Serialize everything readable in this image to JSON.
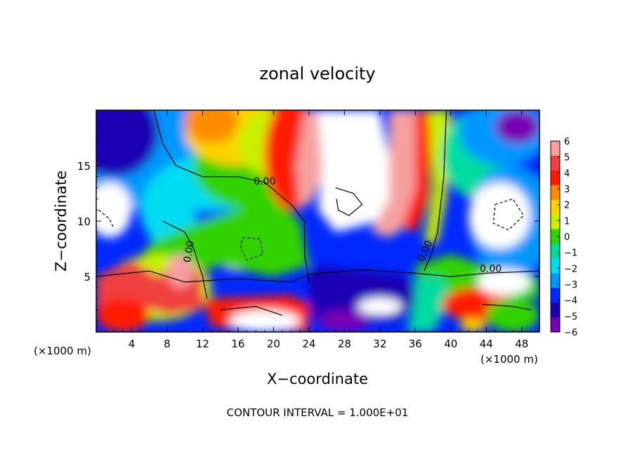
{
  "chart_data": {
    "type": "heatmap",
    "title": "zonal velocity",
    "xlabel": "X−coordinate",
    "ylabel": "Z−coordinate",
    "x_unit_left": "(×1000 m)",
    "x_unit_right": "(×1000 m)",
    "xlim": [
      0,
      50
    ],
    "ylim": [
      0,
      20
    ],
    "x_ticks": [
      4,
      8,
      12,
      16,
      20,
      24,
      28,
      32,
      36,
      40,
      44,
      48
    ],
    "y_ticks": [
      5,
      10,
      15
    ],
    "colorbar": {
      "levels": [
        6,
        5,
        4,
        3,
        2,
        1,
        0,
        -1,
        -2,
        -3,
        -4,
        -5,
        -6
      ],
      "labels": [
        "6",
        "5",
        "4",
        "3",
        "2",
        "1",
        "0",
        "−1",
        "−2",
        "−3",
        "−4",
        "−5",
        "−6"
      ],
      "colors": [
        "#f5a0a0",
        "#f04040",
        "#ff1a00",
        "#ff8c00",
        "#ffd200",
        "#c8f000",
        "#32d200",
        "#00dca0",
        "#00dcf0",
        "#0096ff",
        "#0028ff",
        "#1e00b4",
        "#7800b4"
      ]
    },
    "out_of_range_color": "#ffffff",
    "zero_contour_label": "0.00",
    "contour_labels": [
      "0.00",
      "0.00",
      "0.00",
      "0.00"
    ],
    "footer": "CONTOUR INTERVAL = 1.000E+01"
  }
}
